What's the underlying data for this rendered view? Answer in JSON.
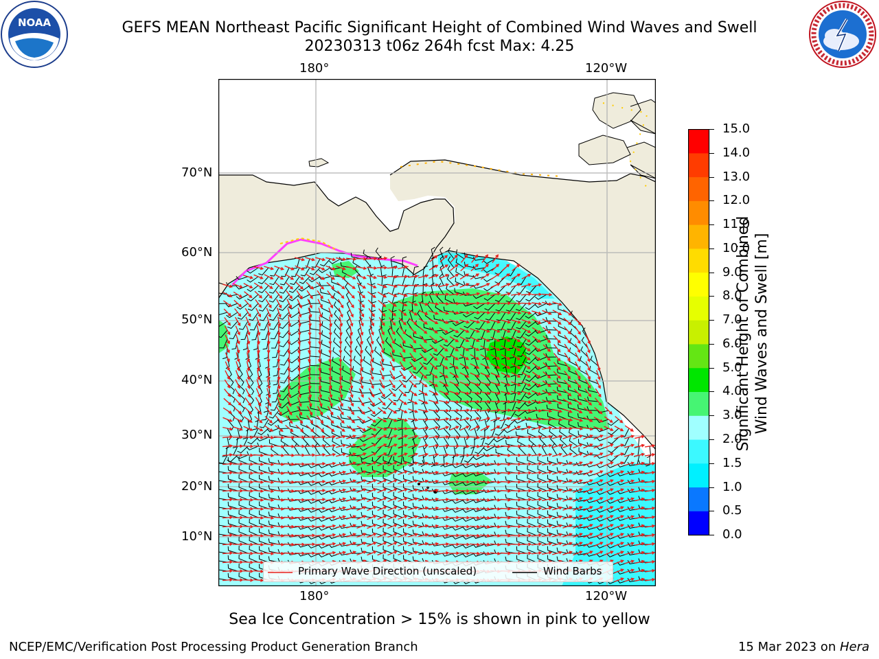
{
  "header": {
    "title_line1": "GEFS MEAN Northeast Pacific Significant Height of Combined Wind Waves and Swell",
    "title_line2": "20230313 t06z 264h fcst   Max: 4.25"
  },
  "logos": {
    "left": {
      "name": "noaa-logo",
      "text": "NOAA"
    },
    "right": {
      "name": "nws-logo",
      "text": "NATIONAL WEATHER SERVICE"
    }
  },
  "map": {
    "lon_labels_top": [
      "180°",
      "120°W"
    ],
    "lon_labels_bottom": [
      "180°",
      "120°W"
    ],
    "lat_labels": [
      "70°N",
      "60°N",
      "50°N",
      "40°N",
      "30°N",
      "20°N",
      "10°N"
    ],
    "legend": {
      "wave": "Primary Wave Direction (unscaled)",
      "wind": "Wind Barbs"
    },
    "land_color": "#efecdc",
    "wave_arrow_color": "#e8201c",
    "barb_color": "#000000"
  },
  "colorbar": {
    "label_line1": "Significant Height of Combined",
    "label_line2": "Wind Waves and Swell [m]",
    "ticks": [
      "15.0",
      "14.0",
      "13.0",
      "12.0",
      "11.0",
      "10.0",
      "9.0",
      "8.0",
      "7.0",
      "6.0",
      "5.0",
      "4.0",
      "3.0",
      "2.0",
      "1.5",
      "1.0",
      "0.5",
      "0.0"
    ],
    "colors_bottom_to_top": [
      "#0000ff",
      "#0a78ff",
      "#00f0ff",
      "#3cf8ff",
      "#a0ffff",
      "#46f573",
      "#00e600",
      "#64e614",
      "#c8f000",
      "#e6ff00",
      "#ffff00",
      "#ffdc00",
      "#ffb400",
      "#ff8c00",
      "#ff6400",
      "#ff3c00",
      "#ff0000"
    ]
  },
  "note": "Sea Ice Concentration > 15% is shown in pink to yellow",
  "footer": {
    "left": "NCEP/EMC/Verification Post Processing Product Generation Branch",
    "right_date": "15 Mar 2023 on ",
    "right_machine": "Hera"
  }
}
